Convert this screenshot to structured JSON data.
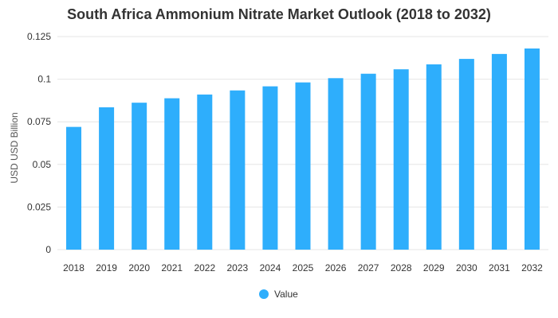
{
  "chart_data": {
    "type": "bar",
    "title": "South Africa Ammonium Nitrate Market Outlook (2018 to 2032)",
    "xlabel": "",
    "ylabel": "USD USD Billion",
    "categories": [
      "2018",
      "2019",
      "2020",
      "2021",
      "2022",
      "2023",
      "2024",
      "2025",
      "2026",
      "2027",
      "2028",
      "2029",
      "2030",
      "2031",
      "2032"
    ],
    "series": [
      {
        "name": "Value",
        "values": [
          0.072,
          0.0835,
          0.0862,
          0.0888,
          0.091,
          0.0934,
          0.0958,
          0.0981,
          0.1006,
          0.1032,
          0.1058,
          0.1087,
          0.1119,
          0.1148,
          0.118
        ]
      }
    ],
    "ylim": [
      0,
      0.125
    ],
    "yticks": [
      "0",
      "0.025",
      "0.05",
      "0.075",
      "0.1",
      "0.125"
    ],
    "grid": true,
    "legend": "bottom",
    "bar_color": "#2eaefc",
    "grid_color": "#e6e6e6"
  }
}
